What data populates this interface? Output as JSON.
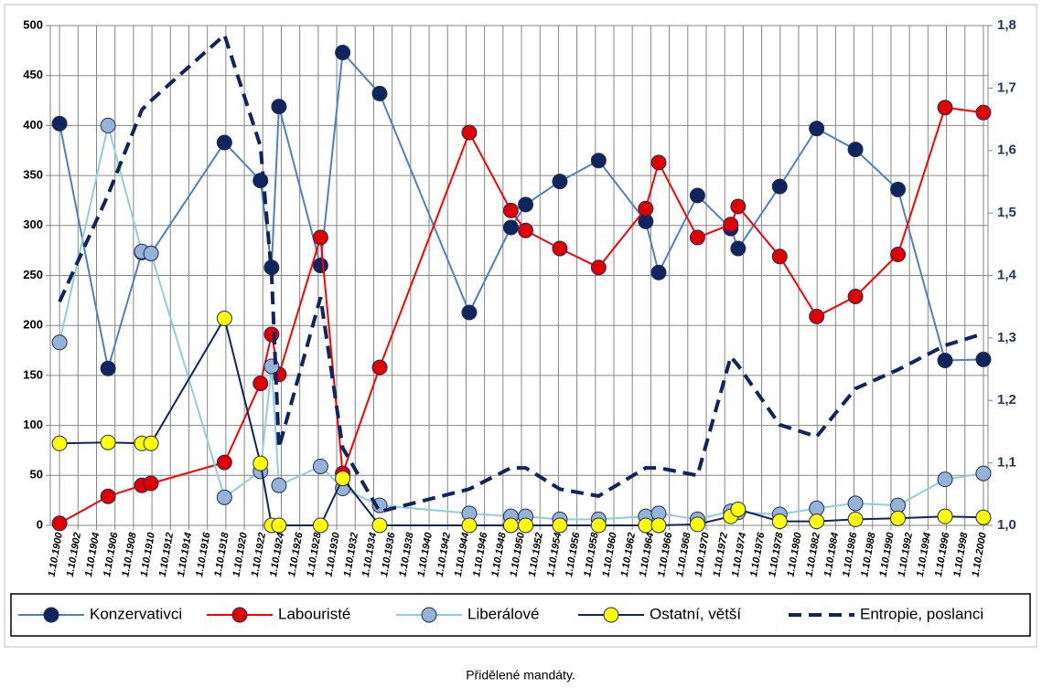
{
  "chart_data": {
    "type": "line",
    "xlabel": "Přidělené mandáty.",
    "x": [
      1900.75,
      1906.0,
      1909.65,
      1910.65,
      1918.6,
      1922.5,
      1923.7,
      1924.5,
      1929.0,
      1931.4,
      1935.4,
      1945.1,
      1949.6,
      1951.2,
      1954.9,
      1959.1,
      1964.2,
      1965.6,
      1969.8,
      1973.4,
      1974.2,
      1978.7,
      1982.7,
      1986.9,
      1991.5,
      1996.6,
      2000.75
    ],
    "xlim": [
      1899.75,
      2001.25
    ],
    "xticks": [
      {
        "value": 1900.75,
        "label": "1.10.1900"
      },
      {
        "value": 1902.75,
        "label": "1.10.1902"
      },
      {
        "value": 1904.75,
        "label": "1.10.1904"
      },
      {
        "value": 1906.75,
        "label": "1.10.1906"
      },
      {
        "value": 1908.75,
        "label": "1.10.1908"
      },
      {
        "value": 1910.75,
        "label": "1.10.1910"
      },
      {
        "value": 1912.75,
        "label": "1.10.1912"
      },
      {
        "value": 1914.75,
        "label": "1.10.1914"
      },
      {
        "value": 1916.75,
        "label": "1.10.1916"
      },
      {
        "value": 1918.75,
        "label": "1.10.1918"
      },
      {
        "value": 1920.75,
        "label": "1.10.1920"
      },
      {
        "value": 1922.75,
        "label": "1.10.1922"
      },
      {
        "value": 1924.75,
        "label": "1.10.1924"
      },
      {
        "value": 1926.75,
        "label": "1.10.1926"
      },
      {
        "value": 1928.75,
        "label": "1.10.1928"
      },
      {
        "value": 1930.75,
        "label": "1.10.1930"
      },
      {
        "value": 1932.75,
        "label": "1.10.1932"
      },
      {
        "value": 1934.75,
        "label": "1.10.1934"
      },
      {
        "value": 1936.75,
        "label": "1.10.1936"
      },
      {
        "value": 1938.75,
        "label": "1.10.1938"
      },
      {
        "value": 1940.75,
        "label": "1.10.1940"
      },
      {
        "value": 1942.75,
        "label": "1.10.1942"
      },
      {
        "value": 1944.75,
        "label": "1.10.1944"
      },
      {
        "value": 1946.75,
        "label": "1.10.1946"
      },
      {
        "value": 1948.75,
        "label": "1.10.1948"
      },
      {
        "value": 1950.75,
        "label": "1.10.1950"
      },
      {
        "value": 1952.75,
        "label": "1.10.1952"
      },
      {
        "value": 1954.75,
        "label": "1.10.1954"
      },
      {
        "value": 1956.75,
        "label": "1.10.1956"
      },
      {
        "value": 1958.75,
        "label": "1.10.1958"
      },
      {
        "value": 1960.75,
        "label": "1.10.1960"
      },
      {
        "value": 1962.75,
        "label": "1.10.1962"
      },
      {
        "value": 1964.75,
        "label": "1.10.1964"
      },
      {
        "value": 1966.75,
        "label": "1.10.1966"
      },
      {
        "value": 1968.75,
        "label": "1.10.1968"
      },
      {
        "value": 1970.75,
        "label": "1.10.1970"
      },
      {
        "value": 1972.75,
        "label": "1.10.1972"
      },
      {
        "value": 1974.75,
        "label": "1.10.1974"
      },
      {
        "value": 1976.75,
        "label": "1.10.1976"
      },
      {
        "value": 1978.75,
        "label": "1.10.1978"
      },
      {
        "value": 1980.75,
        "label": "1.10.1980"
      },
      {
        "value": 1982.75,
        "label": "1.10.1982"
      },
      {
        "value": 1984.75,
        "label": "1.10.1984"
      },
      {
        "value": 1986.75,
        "label": "1.10.1986"
      },
      {
        "value": 1988.75,
        "label": "1.10.1988"
      },
      {
        "value": 1990.75,
        "label": "1.10.1990"
      },
      {
        "value": 1992.75,
        "label": "1.10.1992"
      },
      {
        "value": 1994.75,
        "label": "1.10.1994"
      },
      {
        "value": 1996.75,
        "label": "1.10.1996"
      },
      {
        "value": 1998.75,
        "label": "1.10.1998"
      },
      {
        "value": 2000.75,
        "label": "1.10.2000"
      }
    ],
    "ylim": [
      0,
      500
    ],
    "yticks": [
      0,
      50,
      100,
      150,
      200,
      250,
      300,
      350,
      400,
      450,
      500
    ],
    "y2lim": [
      1.0,
      1.8
    ],
    "y2ticks": [
      {
        "value": 1.0,
        "label": "1,0"
      },
      {
        "value": 1.1,
        "label": "1,1"
      },
      {
        "value": 1.2,
        "label": "1,2"
      },
      {
        "value": 1.3,
        "label": "1,3"
      },
      {
        "value": 1.4,
        "label": "1,4"
      },
      {
        "value": 1.5,
        "label": "1,5"
      },
      {
        "value": 1.6,
        "label": "1,6"
      },
      {
        "value": 1.7,
        "label": "1,7"
      },
      {
        "value": 1.8,
        "label": "1,8"
      }
    ],
    "grid": true,
    "legend": "bottom",
    "series": [
      {
        "name": "Konzervativci",
        "color": "#4f81bd",
        "marker_color": "#10245e",
        "values": [
          402,
          157,
          273,
          272,
          383,
          345,
          258,
          419,
          260,
          473,
          432,
          213,
          298,
          321,
          344,
          365,
          304,
          253,
          330,
          297,
          277,
          339,
          397,
          376,
          336,
          165,
          166
        ]
      },
      {
        "name": "Labouristé",
        "color": "#ff0000",
        "marker_color": "#e00000",
        "values": [
          2,
          29,
          40,
          42,
          63,
          142,
          191,
          151,
          288,
          52,
          158,
          393,
          315,
          295,
          277,
          258,
          317,
          363,
          288,
          301,
          319,
          269,
          209,
          229,
          271,
          418,
          413
        ]
      },
      {
        "name": "Liberálové",
        "color": "#92cddc",
        "marker_color": "#95b3d7",
        "values": [
          183,
          400,
          274,
          272,
          28,
          54,
          159,
          40,
          59,
          37,
          20,
          12,
          9,
          9,
          6,
          6,
          9,
          12,
          6,
          14,
          13,
          11,
          17,
          22,
          20,
          46,
          52
        ]
      },
      {
        "name": "Ostatní, větší",
        "color": "#10245e",
        "marker_color": "#ffff00",
        "values": [
          82,
          83,
          82,
          82,
          207,
          62,
          0,
          0,
          0,
          47,
          0,
          0,
          0,
          0,
          0,
          0,
          0,
          0,
          1,
          9,
          16,
          4,
          4,
          6,
          7,
          9,
          8
        ]
      },
      {
        "name": "Entropie, poslanci",
        "color": "#10245e",
        "axis": "y2",
        "dashed": true,
        "values": [
          1.358,
          1.529,
          1.665,
          1.68,
          1.785,
          1.607,
          1.402,
          1.124,
          1.365,
          1.124,
          1.022,
          1.058,
          1.092,
          1.092,
          1.058,
          1.047,
          1.092,
          1.092,
          1.08,
          1.27,
          1.256,
          1.161,
          1.142,
          1.219,
          1.249,
          1.288,
          1.307
        ]
      }
    ]
  }
}
